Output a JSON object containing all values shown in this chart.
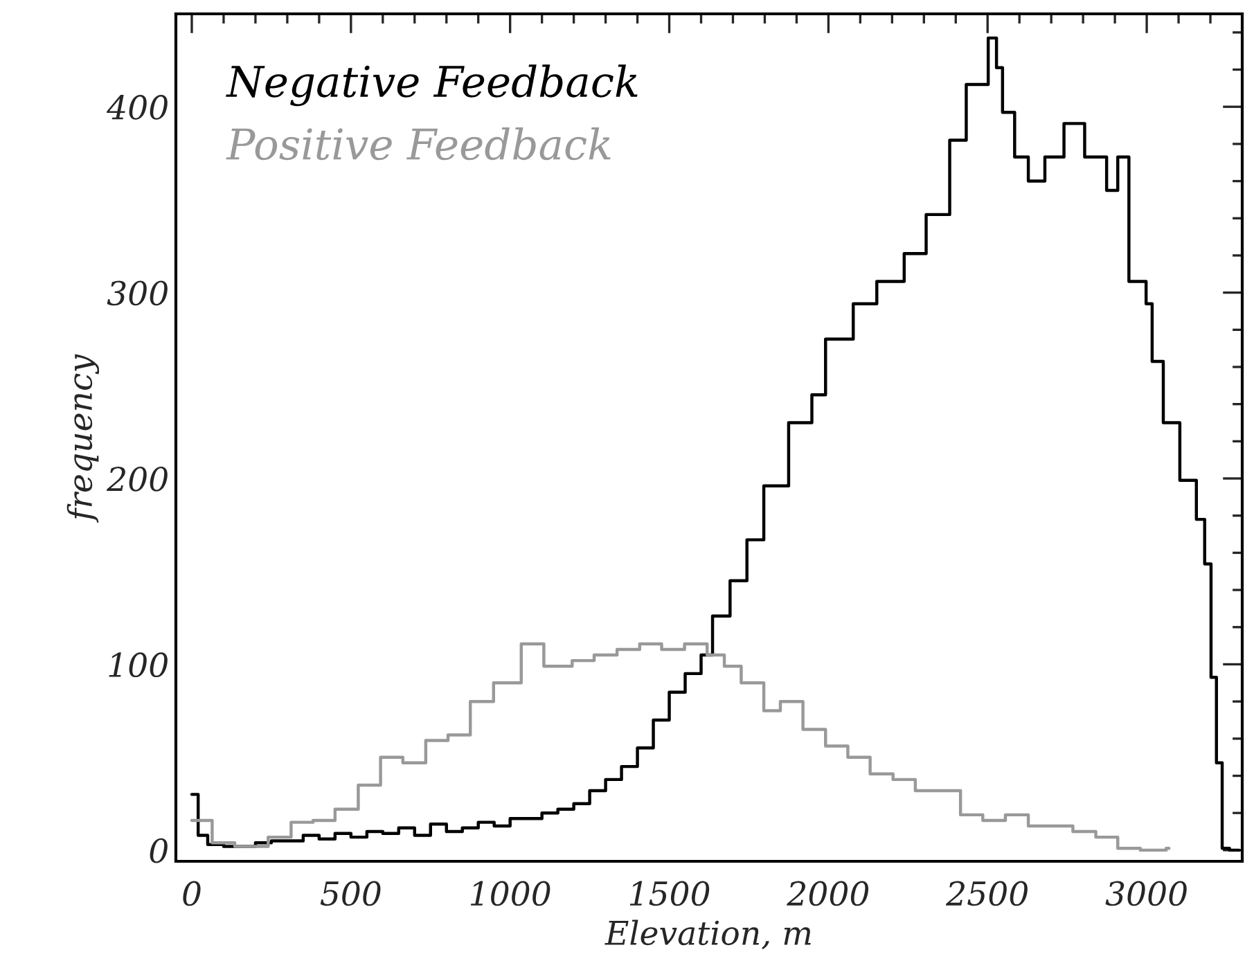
{
  "chart_data": {
    "type": "step",
    "xlabel": "Elevation, m",
    "ylabel": "frequency",
    "xlim": [
      -50,
      3300
    ],
    "ylim": [
      -6,
      450
    ],
    "xticks": [
      0,
      500,
      1000,
      1500,
      2000,
      2500,
      3000
    ],
    "yticks": [
      0,
      100,
      200,
      300,
      400
    ],
    "grid": false,
    "legend": "top left",
    "line_style": "solid",
    "marker": "none",
    "series": [
      {
        "name": "Negative Feedback",
        "color": "#000000",
        "x": [
          0,
          20,
          50,
          100,
          150,
          200,
          250,
          300,
          350,
          400,
          450,
          500,
          550,
          600,
          650,
          700,
          750,
          800,
          850,
          900,
          950,
          1000,
          1050,
          1100,
          1150,
          1200,
          1250,
          1300,
          1350,
          1400,
          1450,
          1500,
          1550,
          1600,
          1636,
          1691,
          1744,
          1797,
          1875,
          1948,
          1991,
          2078,
          2152,
          2238,
          2307,
          2381,
          2433,
          2502,
          2528,
          2547,
          2585,
          2628,
          2680,
          2740,
          2805,
          2874,
          2909,
          2944,
          2998,
          3017,
          3052,
          3104,
          3156,
          3182,
          3202,
          3219,
          3237,
          3260,
          3290
        ],
        "values": [
          30,
          8,
          3,
          2,
          2,
          4,
          5,
          5,
          8,
          6,
          9,
          7,
          10,
          9,
          12,
          8,
          14,
          10,
          12,
          15,
          13,
          17,
          17,
          20,
          22,
          25,
          32,
          38,
          45,
          55,
          70,
          85,
          95,
          105,
          126,
          145,
          167,
          196,
          230,
          245,
          275,
          294,
          306,
          321,
          342,
          382,
          412,
          437,
          421,
          397,
          373,
          360,
          373,
          391,
          373,
          355,
          373,
          306,
          294,
          263,
          230,
          199,
          178,
          154,
          93,
          47,
          1,
          0,
          0
        ]
      },
      {
        "name": "Positive Feedback",
        "color": "#999999",
        "x": [
          0,
          10,
          64,
          135,
          240,
          312,
          381,
          450,
          523,
          593,
          663,
          735,
          805,
          875,
          948,
          1035,
          1106,
          1195,
          1264,
          1336,
          1407,
          1476,
          1548,
          1619,
          1673,
          1726,
          1797,
          1849,
          1920,
          1991,
          2061,
          2131,
          2203,
          2273,
          2344,
          2415,
          2485,
          2556,
          2628,
          2697,
          2768,
          2840,
          2909,
          2980,
          3061,
          3070
        ],
        "values": [
          16,
          16,
          4,
          2,
          7,
          15,
          16,
          22,
          35,
          50,
          47,
          59,
          62,
          80,
          90,
          111,
          99,
          102,
          105,
          108,
          111,
          108,
          111,
          105,
          99,
          90,
          75,
          80,
          65,
          56,
          50,
          41,
          38,
          32,
          32,
          19,
          16,
          19,
          13,
          13,
          10,
          7,
          1,
          0,
          1,
          1
        ]
      }
    ]
  }
}
